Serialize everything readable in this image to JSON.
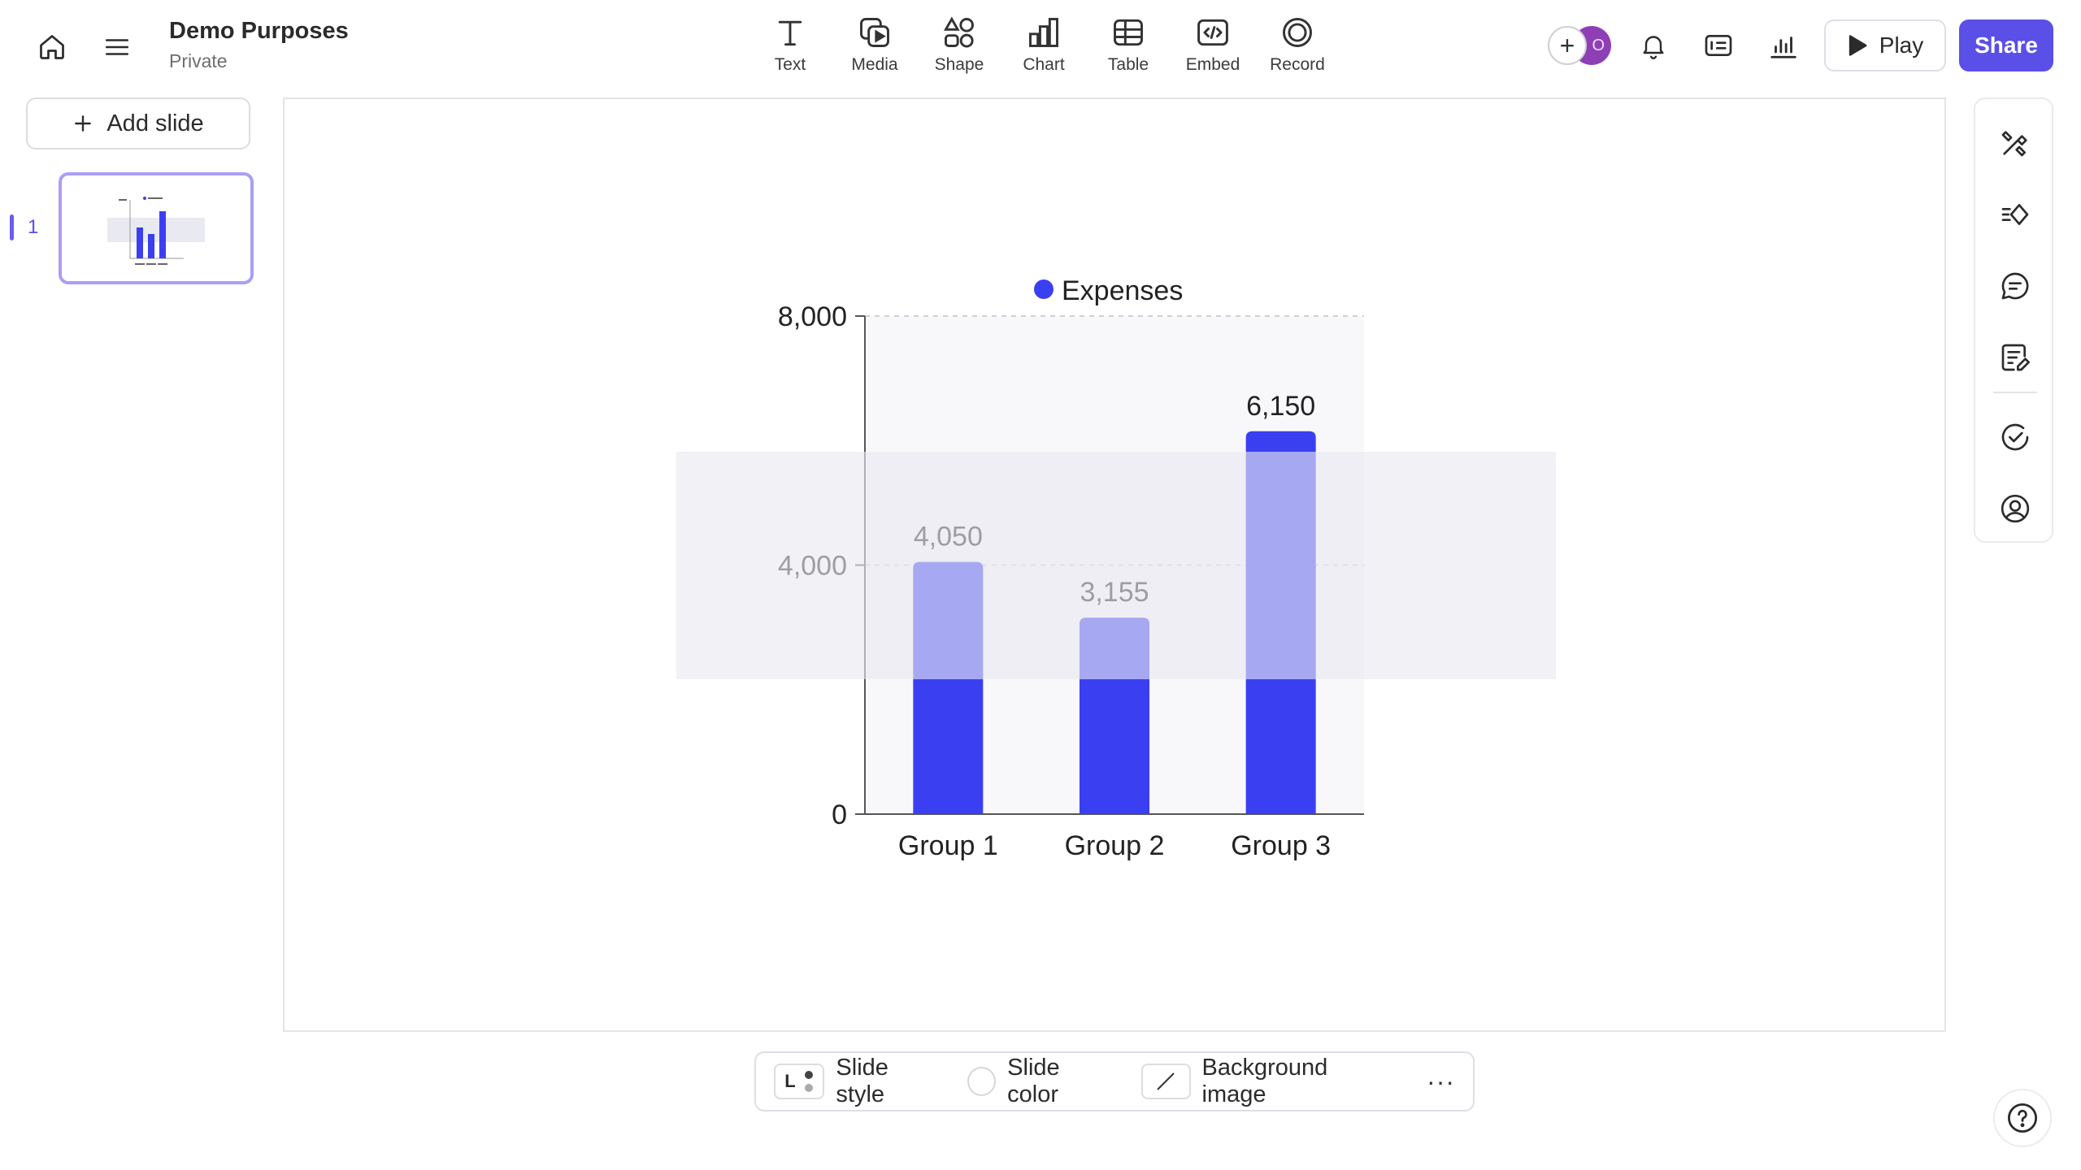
{
  "header": {
    "doc_title": "Demo Purposes",
    "doc_visibility": "Private",
    "tools": [
      {
        "label": "Text",
        "icon": "text-icon"
      },
      {
        "label": "Media",
        "icon": "media-icon"
      },
      {
        "label": "Shape",
        "icon": "shape-icon"
      },
      {
        "label": "Chart",
        "icon": "chart-icon"
      },
      {
        "label": "Table",
        "icon": "table-icon"
      },
      {
        "label": "Embed",
        "icon": "embed-icon"
      },
      {
        "label": "Record",
        "icon": "record-icon"
      }
    ],
    "avatar_initial": "O",
    "play_label": "Play",
    "share_label": "Share"
  },
  "sidebar": {
    "add_slide_label": "Add slide",
    "slides": [
      {
        "number": "1"
      }
    ]
  },
  "bottom_bar": {
    "slide_style_label": "Slide style",
    "slide_style_chip": "L",
    "slide_color_label": "Slide color",
    "background_image_label": "Background image",
    "more_label": "···"
  },
  "colors": {
    "accent": "#5a4fe6",
    "bar": "#3b3ff2",
    "bar_faded": "#a8aaf2",
    "highlight_band": "#e9e9f1"
  },
  "chart_data": {
    "type": "bar",
    "title": "",
    "categories": [
      "Group 1",
      "Group 2",
      "Group 3"
    ],
    "series": [
      {
        "name": "Expenses",
        "values": [
          4050,
          3155,
          6150
        ]
      }
    ],
    "data_labels": [
      "4,050",
      "3,155",
      "6,150"
    ],
    "y_ticks": [
      {
        "value": 0,
        "label": "0"
      },
      {
        "value": 4000,
        "label": "4,000"
      },
      {
        "value": 8000,
        "label": "8,000"
      }
    ],
    "ylim": [
      0,
      8000
    ],
    "legend": "top",
    "grid": true
  }
}
